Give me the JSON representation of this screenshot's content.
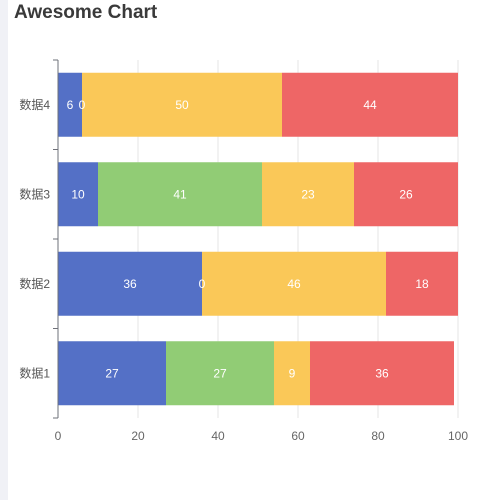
{
  "chart_data": {
    "type": "bar",
    "orientation": "horizontal",
    "stacked": true,
    "title": "Awesome Chart",
    "categories": [
      "数据1",
      "数据2",
      "数据3",
      "数据4"
    ],
    "series": [
      {
        "values": [
          27,
          36,
          10,
          6
        ]
      },
      {
        "values": [
          27,
          0,
          41,
          0
        ]
      },
      {
        "values": [
          9,
          46,
          23,
          50
        ]
      },
      {
        "values": [
          36,
          18,
          26,
          44
        ]
      }
    ],
    "xlim": [
      0,
      100
    ],
    "xticks": [
      0,
      20,
      40,
      60,
      80,
      100
    ],
    "grid": true,
    "legend": "none",
    "colors": [
      "#5470c6",
      "#91cc75",
      "#fac858",
      "#ee6666"
    ]
  }
}
